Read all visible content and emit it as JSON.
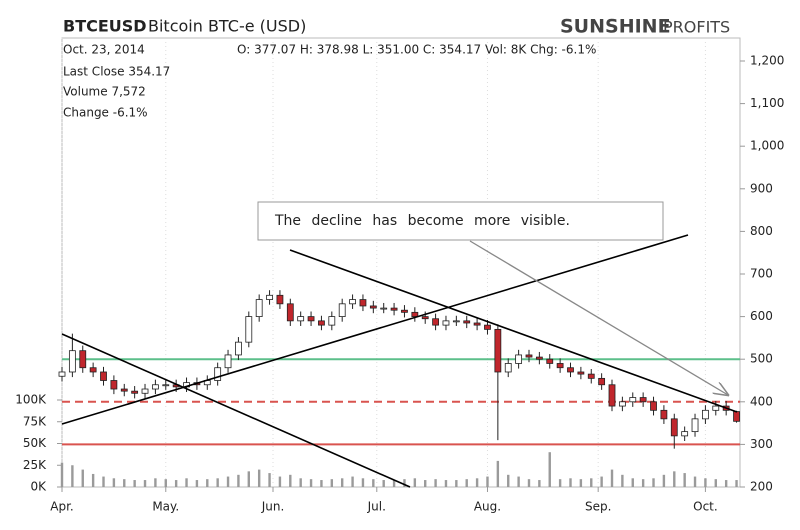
{
  "chart_data": {
    "type": "candlestick",
    "symbol": "BTCEUSD",
    "title": "Bitcoin BTC-e (USD)",
    "brand_bold": "SUNSHINE",
    "brand_light": "PROFITS",
    "date": "Oct. 23, 2014",
    "quote_line": "O: 377.07 H: 378.98 L: 351.00 C: 354.17 Vol: 8K Chg: -6.1%",
    "info": [
      "Last Close 354.17",
      "Volume 7,572",
      "Change -6.1%"
    ],
    "annotation": "The decline has become more visible.",
    "x": [
      0,
      3,
      6,
      9,
      12,
      15,
      18,
      21,
      24,
      27,
      30,
      33,
      36,
      39,
      42,
      45,
      48,
      51,
      54,
      57,
      60,
      63,
      66,
      69,
      72,
      75,
      78,
      81,
      84,
      87,
      90,
      93,
      96,
      99,
      102,
      105,
      108,
      111,
      114,
      117,
      120,
      123,
      126,
      129,
      132,
      135,
      138,
      141,
      144,
      147,
      150,
      153,
      156,
      159,
      162,
      165,
      168,
      171,
      174,
      177,
      180,
      183,
      186,
      189,
      192,
      195
    ],
    "open": [
      460,
      470,
      520,
      480,
      470,
      450,
      430,
      425,
      420,
      430,
      440,
      440,
      435,
      445,
      440,
      450,
      480,
      510,
      540,
      600,
      640,
      650,
      630,
      590,
      600,
      590,
      580,
      600,
      630,
      640,
      625,
      620,
      620,
      615,
      610,
      600,
      595,
      580,
      590,
      590,
      585,
      580,
      570,
      470,
      490,
      510,
      505,
      500,
      490,
      480,
      470,
      465,
      455,
      440,
      390,
      400,
      410,
      400,
      380,
      360,
      320,
      330,
      360,
      380,
      390,
      377.07
    ],
    "high": [
      482,
      560,
      532,
      492,
      482,
      462,
      442,
      437,
      442,
      452,
      452,
      452,
      457,
      457,
      462,
      492,
      522,
      552,
      612,
      652,
      662,
      662,
      642,
      612,
      612,
      602,
      612,
      642,
      652,
      652,
      637,
      632,
      632,
      627,
      622,
      612,
      607,
      602,
      602,
      602,
      597,
      592,
      582,
      502,
      522,
      522,
      517,
      512,
      502,
      492,
      482,
      477,
      467,
      452,
      412,
      422,
      422,
      412,
      392,
      372,
      342,
      372,
      392,
      402,
      402,
      378.98
    ],
    "low": [
      448,
      458,
      468,
      458,
      438,
      418,
      413,
      408,
      408,
      418,
      428,
      423,
      423,
      428,
      428,
      438,
      468,
      498,
      528,
      588,
      628,
      618,
      578,
      578,
      578,
      568,
      568,
      588,
      618,
      613,
      608,
      608,
      603,
      598,
      588,
      583,
      568,
      568,
      578,
      573,
      568,
      558,
      310,
      458,
      478,
      493,
      488,
      478,
      468,
      458,
      453,
      443,
      428,
      378,
      378,
      388,
      388,
      368,
      348,
      290,
      308,
      318,
      348,
      368,
      368,
      351
    ],
    "close": [
      470,
      520,
      480,
      470,
      450,
      430,
      425,
      420,
      430,
      440,
      440,
      435,
      445,
      440,
      450,
      480,
      510,
      540,
      600,
      640,
      650,
      630,
      590,
      600,
      590,
      580,
      600,
      630,
      640,
      625,
      620,
      620,
      615,
      610,
      600,
      595,
      580,
      590,
      590,
      585,
      580,
      570,
      470,
      490,
      510,
      505,
      500,
      490,
      480,
      470,
      465,
      455,
      440,
      390,
      400,
      410,
      400,
      380,
      360,
      320,
      330,
      360,
      380,
      390,
      380,
      354.17
    ],
    "volume": [
      28,
      25,
      20,
      15,
      12,
      10,
      9,
      8,
      8,
      10,
      9,
      8,
      10,
      8,
      9,
      10,
      12,
      14,
      18,
      20,
      16,
      12,
      14,
      10,
      9,
      8,
      9,
      10,
      12,
      10,
      9,
      8,
      8,
      9,
      10,
      8,
      9,
      8,
      8,
      9,
      10,
      12,
      30,
      14,
      12,
      9,
      8,
      40,
      9,
      10,
      9,
      10,
      12,
      20,
      14,
      10,
      9,
      10,
      14,
      18,
      16,
      12,
      10,
      9,
      8,
      8
    ],
    "up_color": "#ffffff",
    "down_color": "#c0262c",
    "volume_color": "#9a9a9a",
    "xlim": [
      0,
      196
    ],
    "xticks": [
      {
        "value": 0,
        "label": "Apr."
      },
      {
        "value": 30,
        "label": "May."
      },
      {
        "value": 61,
        "label": "Jun."
      },
      {
        "value": 91,
        "label": "Jul."
      },
      {
        "value": 123,
        "label": "Aug."
      },
      {
        "value": 155,
        "label": "Sep."
      },
      {
        "value": 186,
        "label": "Oct."
      }
    ],
    "ylim": [
      200,
      1200
    ],
    "yticks": [
      200,
      300,
      400,
      500,
      600,
      700,
      800,
      900,
      {
        "value": 1000,
        "label": "1,000"
      },
      {
        "value": 1100,
        "label": "1,100"
      },
      {
        "value": 1200,
        "label": "1,200"
      }
    ],
    "volume_lim": [
      0,
      100
    ],
    "volume_ticks": [
      {
        "value": 0,
        "label": "0K"
      },
      {
        "value": 25,
        "label": "25K"
      },
      {
        "value": 50,
        "label": "50K"
      },
      {
        "value": 75,
        "label": "75K"
      },
      {
        "value": 100,
        "label": "100K"
      }
    ],
    "reference_lines": [
      {
        "value": 500,
        "color": "#5cbf8a",
        "style": "solid"
      },
      {
        "value": 400,
        "color": "#d9534f",
        "style": "dashed"
      },
      {
        "value": 300,
        "color": "#d9534f",
        "style": "solid"
      }
    ],
    "grid": true
  }
}
